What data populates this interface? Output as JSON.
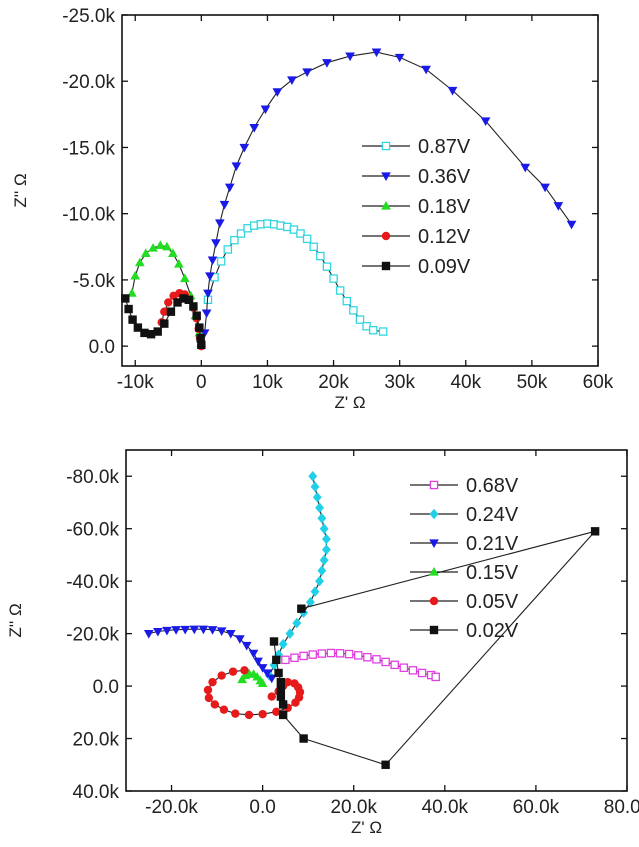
{
  "figure": {
    "top_panel": {
      "chart_data": {
        "type": "scatter",
        "title": "",
        "xlabel": "Z' Ω",
        "ylabel": "Z'' Ω",
        "xlim": [
          -12000,
          60000
        ],
        "ylim": [
          1500,
          -25000
        ],
        "y_axis_inverted": true,
        "x_ticks": [
          -10000,
          0,
          10000,
          20000,
          30000,
          40000,
          50000,
          60000
        ],
        "x_tick_labels": [
          "-10k",
          "0",
          "10k",
          "20k",
          "30k",
          "40k",
          "50k",
          "60k"
        ],
        "y_ticks": [
          0,
          -5000,
          -10000,
          -15000,
          -20000,
          -25000
        ],
        "y_tick_labels": [
          "0.0",
          "-5.0k",
          "-10.0k",
          "-15.0k",
          "-20.0k",
          "-25.0k"
        ],
        "grid": false,
        "legend_position": "right",
        "series": [
          {
            "name": "0.87V",
            "marker": "square-open",
            "color": "#33d6e0",
            "points": [
              [
                1000,
                -3500
              ],
              [
                2000,
                -5200
              ],
              [
                3000,
                -6400
              ],
              [
                4000,
                -7300
              ],
              [
                5000,
                -8000
              ],
              [
                6000,
                -8500
              ],
              [
                7000,
                -8900
              ],
              [
                8000,
                -9100
              ],
              [
                9000,
                -9200
              ],
              [
                10000,
                -9250
              ],
              [
                11000,
                -9200
              ],
              [
                12000,
                -9100
              ],
              [
                13000,
                -9000
              ],
              [
                14000,
                -8800
              ],
              [
                15000,
                -8500
              ],
              [
                16000,
                -8100
              ],
              [
                17000,
                -7500
              ],
              [
                18000,
                -6800
              ],
              [
                19000,
                -6000
              ],
              [
                20000,
                -5100
              ],
              [
                21000,
                -4200
              ],
              [
                22000,
                -3400
              ],
              [
                23000,
                -2700
              ],
              [
                24000,
                -2000
              ],
              [
                25000,
                -1500
              ],
              [
                26000,
                -1200
              ],
              [
                27500,
                -1100
              ]
            ]
          },
          {
            "name": "0.36V",
            "marker": "triangle-down",
            "color": "#1a1ae6",
            "points": [
              [
                500,
                -1000
              ],
              [
                800,
                -2500
              ],
              [
                1000,
                -4000
              ],
              [
                1300,
                -5300
              ],
              [
                1700,
                -6500
              ],
              [
                2200,
                -7800
              ],
              [
                2800,
                -9300
              ],
              [
                3500,
                -10700
              ],
              [
                4300,
                -12000
              ],
              [
                5300,
                -13600
              ],
              [
                6500,
                -15000
              ],
              [
                8000,
                -16500
              ],
              [
                9700,
                -17900
              ],
              [
                11500,
                -19200
              ],
              [
                13700,
                -20100
              ],
              [
                16000,
                -20700
              ],
              [
                19000,
                -21400
              ],
              [
                22500,
                -21900
              ],
              [
                26500,
                -22200
              ],
              [
                30000,
                -21800
              ],
              [
                34000,
                -20900
              ],
              [
                38000,
                -19300
              ],
              [
                43000,
                -17000
              ],
              [
                49000,
                -13500
              ],
              [
                52000,
                -12000
              ],
              [
                54000,
                -10600
              ],
              [
                56000,
                -9200
              ]
            ]
          },
          {
            "name": "0.18V",
            "marker": "triangle-up",
            "color": "#22dd22",
            "points": [
              [
                -10500,
                -4000
              ],
              [
                -10000,
                -5300
              ],
              [
                -9300,
                -6300
              ],
              [
                -8400,
                -7000
              ],
              [
                -7300,
                -7400
              ],
              [
                -6200,
                -7600
              ],
              [
                -5200,
                -7500
              ],
              [
                -4300,
                -7000
              ],
              [
                -3400,
                -6200
              ],
              [
                -2500,
                -5100
              ],
              [
                -1600,
                -3800
              ],
              [
                -900,
                -2300
              ],
              [
                -300,
                -1000
              ],
              [
                0,
                -200
              ]
            ]
          },
          {
            "name": "0.12V",
            "marker": "circle",
            "color": "#e61a1a",
            "points": [
              [
                -6000,
                -1800
              ],
              [
                -5600,
                -2600
              ],
              [
                -5000,
                -3300
              ],
              [
                -4200,
                -3800
              ],
              [
                -3300,
                -4000
              ],
              [
                -2500,
                -3900
              ],
              [
                -1800,
                -3500
              ],
              [
                -1200,
                -2900
              ],
              [
                -700,
                -2100
              ],
              [
                -400,
                -1300
              ],
              [
                -200,
                -600
              ],
              [
                0,
                0
              ]
            ]
          },
          {
            "name": "0.09V",
            "marker": "square",
            "color": "#111111",
            "points": [
              [
                -11500,
                -3600
              ],
              [
                -11000,
                -2800
              ],
              [
                -10400,
                -2000
              ],
              [
                -9600,
                -1400
              ],
              [
                -8600,
                -1000
              ],
              [
                -7600,
                -900
              ],
              [
                -6600,
                -1100
              ],
              [
                -5600,
                -1700
              ],
              [
                -4600,
                -2600
              ],
              [
                -3600,
                -3300
              ],
              [
                -2700,
                -3600
              ],
              [
                -1900,
                -3500
              ],
              [
                -1200,
                -3000
              ],
              [
                -700,
                -2300
              ],
              [
                -300,
                -1400
              ],
              [
                -100,
                -600
              ],
              [
                0,
                -100
              ]
            ]
          }
        ]
      }
    },
    "bottom_panel": {
      "chart_data": {
        "type": "scatter",
        "title": "",
        "xlabel": "Z' Ω",
        "ylabel": "Z'' Ω",
        "xlim": [
          -30000,
          80000
        ],
        "ylim": [
          40000,
          -90000
        ],
        "y_axis_inverted": true,
        "x_ticks": [
          -20000,
          0,
          20000,
          40000,
          60000,
          80000
        ],
        "x_tick_labels": [
          "-20.0k",
          "0.0",
          "20.0k",
          "40.0k",
          "60.0k",
          "80.0k"
        ],
        "y_ticks": [
          40000,
          20000,
          0,
          -20000,
          -40000,
          -60000,
          -80000
        ],
        "y_tick_labels": [
          "40.0k",
          "20.0k",
          "0.0",
          "-20.0k",
          "-40.0k",
          "-60.0k",
          "-80.0k"
        ],
        "grid": false,
        "legend_position": "right",
        "series": [
          {
            "name": "0.68V",
            "marker": "square-open",
            "color": "#e040e0",
            "points": [
              [
                5000,
                -10000
              ],
              [
                7000,
                -10800
              ],
              [
                9000,
                -11500
              ],
              [
                11000,
                -12000
              ],
              [
                13000,
                -12400
              ],
              [
                15000,
                -12600
              ],
              [
                17000,
                -12500
              ],
              [
                19000,
                -12200
              ],
              [
                21000,
                -11700
              ],
              [
                23000,
                -11000
              ],
              [
                25000,
                -10200
              ],
              [
                27000,
                -9200
              ],
              [
                29000,
                -8100
              ],
              [
                31000,
                -7000
              ],
              [
                33000,
                -6000
              ],
              [
                35000,
                -5000
              ],
              [
                37000,
                -4200
              ],
              [
                38000,
                -3500
              ]
            ]
          },
          {
            "name": "0.24V",
            "marker": "diamond",
            "color": "#20d0e8",
            "points": [
              [
                1500,
                -4000
              ],
              [
                2500,
                -8000
              ],
              [
                3500,
                -12000
              ],
              [
                4500,
                -16000
              ],
              [
                6000,
                -20000
              ],
              [
                7500,
                -24000
              ],
              [
                9000,
                -28000
              ],
              [
                10500,
                -32000
              ],
              [
                11500,
                -36000
              ],
              [
                12500,
                -40000
              ],
              [
                13000,
                -44000
              ],
              [
                13500,
                -48000
              ],
              [
                14000,
                -52000
              ],
              [
                14000,
                -56000
              ],
              [
                13500,
                -60000
              ],
              [
                13000,
                -64000
              ],
              [
                12500,
                -68000
              ],
              [
                12000,
                -72000
              ],
              [
                11500,
                -76000
              ],
              [
                11000,
                -80000
              ]
            ]
          },
          {
            "name": "0.21V",
            "marker": "triangle-down",
            "color": "#1a1ae6",
            "points": [
              [
                -25000,
                -20000
              ],
              [
                -23000,
                -20800
              ],
              [
                -21000,
                -21200
              ],
              [
                -19000,
                -21500
              ],
              [
                -17000,
                -21600
              ],
              [
                -15000,
                -21700
              ],
              [
                -13000,
                -21700
              ],
              [
                -11000,
                -21500
              ],
              [
                -9000,
                -21000
              ],
              [
                -7000,
                -20000
              ],
              [
                -5000,
                -18000
              ],
              [
                -3500,
                -15500
              ],
              [
                -2000,
                -12500
              ],
              [
                -1000,
                -9500
              ],
              [
                0,
                -7000
              ],
              [
                1000,
                -5000
              ],
              [
                2000,
                -3000
              ]
            ]
          },
          {
            "name": "0.15V",
            "marker": "triangle-up",
            "color": "#22dd22",
            "points": [
              [
                -4500,
                -2500
              ],
              [
                -3800,
                -4000
              ],
              [
                -3000,
                -4800
              ],
              [
                -2000,
                -4500
              ],
              [
                -1200,
                -3500
              ],
              [
                -500,
                -2000
              ],
              [
                0,
                -1000
              ]
            ]
          },
          {
            "name": "0.05V",
            "marker": "circle",
            "color": "#e61a1a",
            "points": [
              [
                -4000,
                -6000
              ],
              [
                -6500,
                -5500
              ],
              [
                -9000,
                -4000
              ],
              [
                -11000,
                -1500
              ],
              [
                -12000,
                1500
              ],
              [
                -11800,
                4500
              ],
              [
                -10500,
                7000
              ],
              [
                -8500,
                9000
              ],
              [
                -6000,
                10500
              ],
              [
                -3000,
                11000
              ],
              [
                0,
                10700
              ],
              [
                3000,
                9800
              ],
              [
                5500,
                8300
              ],
              [
                7200,
                6300
              ],
              [
                8000,
                4300
              ],
              [
                8200,
                2300
              ],
              [
                7800,
                500
              ],
              [
                7000,
                -1000
              ],
              [
                5500,
                -1500
              ],
              [
                4500,
                0
              ],
              [
                3500,
                2000
              ],
              [
                2000,
                4000
              ]
            ]
          },
          {
            "name": "0.02V",
            "marker": "square",
            "color": "#111111",
            "points": [
              [
                2500,
                -17000
              ],
              [
                3000,
                -10000
              ],
              [
                3500,
                -5000
              ],
              [
                4000,
                -1500
              ],
              [
                4000,
                1500
              ],
              [
                4000,
                4000
              ],
              [
                4500,
                7000
              ],
              [
                4500,
                11000
              ],
              [
                9000,
                20000
              ],
              [
                27000,
                30000
              ],
              [
                73000,
                -59000
              ],
              [
                8500,
                -29500
              ]
            ]
          }
        ]
      }
    }
  }
}
